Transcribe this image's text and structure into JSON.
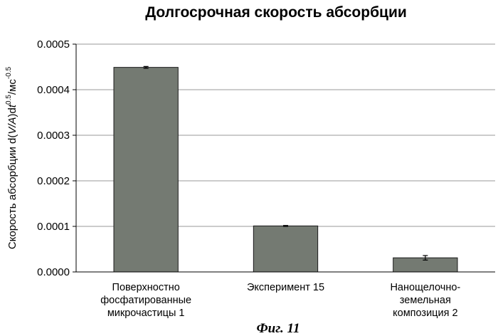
{
  "figure_caption": "Фиг. 11",
  "chart_data": {
    "type": "bar",
    "title": "Долгосрочная скорость абсорбции",
    "ylabel": {
      "prefix": "Скорость абсорбции d(",
      "italic": "V/A",
      "mid": ")d",
      "italic2": "t",
      "sup1": "0.5",
      "sep": "/мс",
      "sup2": "-0.5"
    },
    "xlabel": "",
    "categories": [
      [
        "Поверхностно",
        "фосфатированные",
        "микрочастицы 1"
      ],
      [
        "Эксперимент 15"
      ],
      [
        "Нанощелочно-",
        "земельная",
        "композиция 2"
      ]
    ],
    "values": [
      0.000449,
      0.000101,
      3.1e-05
    ],
    "errors": [
      2e-06,
      1e-06,
      5e-06
    ],
    "ylim": [
      0,
      0.0005
    ],
    "yticks": [
      "0.0000",
      "0.0001",
      "0.0002",
      "0.0003",
      "0.0004",
      "0.0005"
    ],
    "grid": true,
    "bar_color": "#747a72",
    "grid_color": "#9a9a9a"
  }
}
